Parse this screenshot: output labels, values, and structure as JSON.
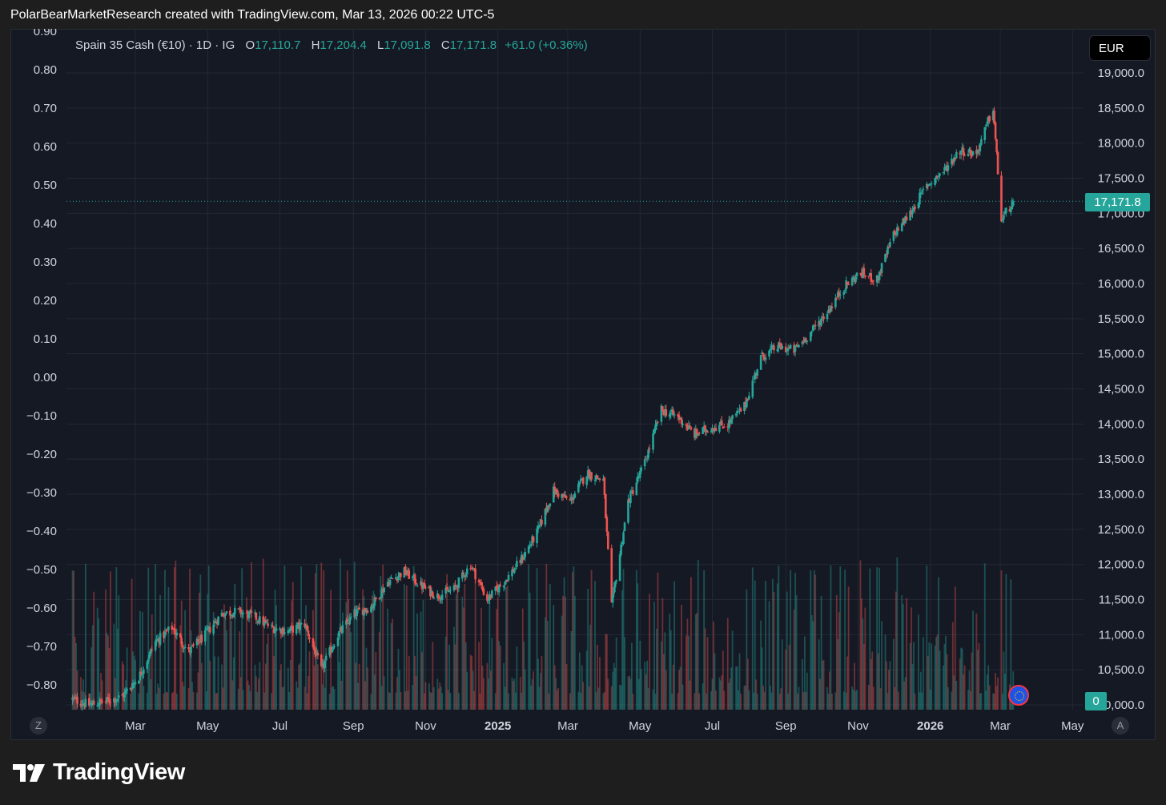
{
  "header": {
    "attribution": "PolarBearMarketResearch created with TradingView.com, Mar 13, 2026 00:22 UTC-5"
  },
  "legend": {
    "symbol": "Spain 35 Cash (€10) · 1D · IG",
    "o_label": "O",
    "o": "17,110.7",
    "h_label": "H",
    "h": "17,204.4",
    "l_label": "L",
    "l": "17,091.8",
    "c_label": "C",
    "c": "17,171.8",
    "change": "+61.0 (+0.36%)"
  },
  "currency_button": "EUR",
  "price_tag": "17,171.8",
  "volume_tag": "0",
  "scale_buttons": {
    "left": "Z",
    "right": "A"
  },
  "brand": {
    "name": "TradingView"
  },
  "colors": {
    "up": "#26a69a",
    "down": "#ef5350",
    "background": "#151924",
    "grid": "#232834",
    "text": "#d1d4dc"
  },
  "chart_data": {
    "type": "candlestick",
    "symbol": "Spain 35 Cash (€10)",
    "interval": "1D",
    "currency": "EUR",
    "last_close": 17171.8,
    "price_ticks": [
      "19,000.0",
      "18,500.0",
      "18,000.0",
      "17,500.0",
      "17,000.0",
      "16,500.0",
      "16,000.0",
      "15,500.0",
      "15,000.0",
      "14,500.0",
      "14,000.0",
      "13,500.0",
      "13,000.0",
      "12,500.0",
      "12,000.0",
      "11,500.0",
      "11,000.0",
      "10,500.0",
      "10,000.0"
    ],
    "left_ticks": [
      "0.90",
      "0.80",
      "0.70",
      "0.60",
      "0.50",
      "0.40",
      "0.30",
      "0.20",
      "0.10",
      "0.00",
      "−0.10",
      "−0.20",
      "−0.30",
      "−0.40",
      "−0.50",
      "−0.60",
      "−0.70",
      "−0.80"
    ],
    "x_ticks": [
      {
        "label": "Mar",
        "date": "2024-03-01"
      },
      {
        "label": "May",
        "date": "2024-05-01"
      },
      {
        "label": "Jul",
        "date": "2024-07-01"
      },
      {
        "label": "Sep",
        "date": "2024-09-01"
      },
      {
        "label": "Nov",
        "date": "2024-11-01"
      },
      {
        "label": "2025",
        "date": "2025-01-01",
        "bold": true
      },
      {
        "label": "Mar",
        "date": "2025-03-01"
      },
      {
        "label": "May",
        "date": "2025-05-01"
      },
      {
        "label": "Jul",
        "date": "2025-07-01"
      },
      {
        "label": "Sep",
        "date": "2025-09-01"
      },
      {
        "label": "Nov",
        "date": "2025-11-01"
      },
      {
        "label": "2026",
        "date": "2026-01-01",
        "bold": true
      },
      {
        "label": "Mar",
        "date": "2026-03-01"
      },
      {
        "label": "May",
        "date": "2026-05-01"
      }
    ],
    "ohlc_source": "weekly closes, candles interpolated daily",
    "closes": [
      {
        "date": "2024-01-08",
        "close": 10080
      },
      {
        "date": "2024-01-22",
        "close": 10000
      },
      {
        "date": "2024-02-05",
        "close": 10050
      },
      {
        "date": "2024-02-19",
        "close": 10120
      },
      {
        "date": "2024-03-04",
        "close": 10400
      },
      {
        "date": "2024-03-18",
        "close": 10900
      },
      {
        "date": "2024-04-01",
        "close": 11100
      },
      {
        "date": "2024-04-15",
        "close": 10750
      },
      {
        "date": "2024-04-29",
        "close": 11000
      },
      {
        "date": "2024-05-13",
        "close": 11300
      },
      {
        "date": "2024-05-27",
        "close": 11330
      },
      {
        "date": "2024-06-10",
        "close": 11250
      },
      {
        "date": "2024-06-24",
        "close": 11100
      },
      {
        "date": "2024-07-08",
        "close": 11050
      },
      {
        "date": "2024-07-22",
        "close": 11150
      },
      {
        "date": "2024-08-05",
        "close": 10500
      },
      {
        "date": "2024-08-19",
        "close": 11000
      },
      {
        "date": "2024-09-02",
        "close": 11300
      },
      {
        "date": "2024-09-16",
        "close": 11400
      },
      {
        "date": "2024-09-30",
        "close": 11750
      },
      {
        "date": "2024-10-14",
        "close": 11900
      },
      {
        "date": "2024-10-28",
        "close": 11700
      },
      {
        "date": "2024-11-11",
        "close": 11550
      },
      {
        "date": "2024-11-25",
        "close": 11650
      },
      {
        "date": "2024-12-09",
        "close": 12000
      },
      {
        "date": "2024-12-23",
        "close": 11500
      },
      {
        "date": "2025-01-06",
        "close": 11750
      },
      {
        "date": "2025-01-20",
        "close": 12050
      },
      {
        "date": "2025-02-03",
        "close": 12450
      },
      {
        "date": "2025-02-17",
        "close": 13050
      },
      {
        "date": "2025-03-03",
        "close": 12900
      },
      {
        "date": "2025-03-17",
        "close": 13300
      },
      {
        "date": "2025-03-31",
        "close": 13200
      },
      {
        "date": "2025-04-07",
        "close": 11400
      },
      {
        "date": "2025-04-21",
        "close": 12900
      },
      {
        "date": "2025-05-05",
        "close": 13450
      },
      {
        "date": "2025-05-19",
        "close": 14200
      },
      {
        "date": "2025-06-02",
        "close": 14100
      },
      {
        "date": "2025-06-16",
        "close": 13850
      },
      {
        "date": "2025-06-30",
        "close": 13950
      },
      {
        "date": "2025-07-14",
        "close": 14000
      },
      {
        "date": "2025-07-28",
        "close": 14250
      },
      {
        "date": "2025-08-11",
        "close": 14950
      },
      {
        "date": "2025-08-25",
        "close": 15100
      },
      {
        "date": "2025-09-08",
        "close": 15050
      },
      {
        "date": "2025-09-22",
        "close": 15300
      },
      {
        "date": "2025-10-06",
        "close": 15600
      },
      {
        "date": "2025-10-20",
        "close": 15950
      },
      {
        "date": "2025-11-03",
        "close": 16150
      },
      {
        "date": "2025-11-17",
        "close": 16050
      },
      {
        "date": "2025-12-01",
        "close": 16700
      },
      {
        "date": "2025-12-15",
        "close": 17000
      },
      {
        "date": "2025-12-29",
        "close": 17400
      },
      {
        "date": "2026-01-12",
        "close": 17600
      },
      {
        "date": "2026-01-26",
        "close": 17900
      },
      {
        "date": "2026-02-09",
        "close": 17850
      },
      {
        "date": "2026-02-23",
        "close": 18500
      },
      {
        "date": "2026-03-02",
        "close": 16900
      },
      {
        "date": "2026-03-12",
        "close": 17171.8
      }
    ]
  }
}
